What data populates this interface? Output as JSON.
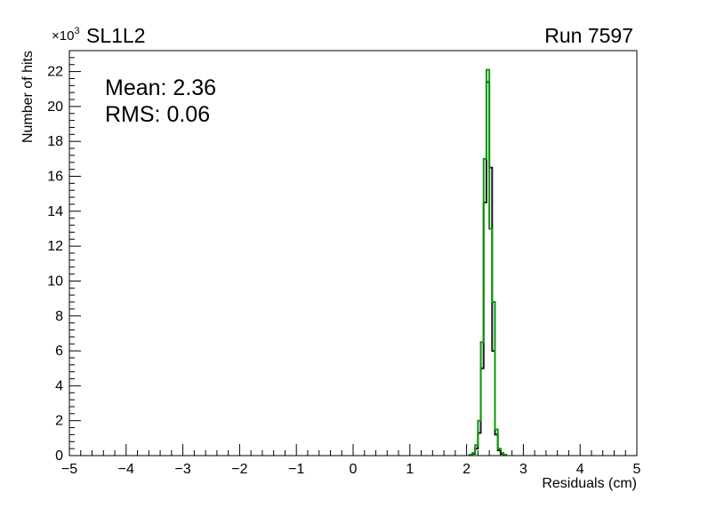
{
  "page": {
    "background": "#ffffff"
  },
  "chart_data": {
    "type": "histogram-step",
    "title": "SL1L2",
    "corner_label": "Run 7597",
    "xlabel": "Residuals (cm)",
    "ylabel": "Number of hits",
    "y_multiplier_base": "×10",
    "y_multiplier_exp": "3",
    "annotation": {
      "line1": "Mean: 2.36",
      "line2": "RMS:  0.06",
      "mean": 2.36,
      "rms": 0.06
    },
    "xlim": [
      -5,
      5
    ],
    "ylim": [
      0,
      23.2
    ],
    "x_major_ticks": [
      -5,
      -4,
      -3,
      -2,
      -1,
      0,
      1,
      2,
      3,
      4,
      5
    ],
    "x_tick_labels": [
      "−5",
      "−4",
      "−3",
      "−2",
      "−1",
      "0",
      "1",
      "2",
      "3",
      "4",
      "5"
    ],
    "y_major_ticks": [
      0,
      2,
      4,
      6,
      8,
      10,
      12,
      14,
      16,
      18,
      20,
      22
    ],
    "y_tick_labels": [
      "0",
      "2",
      "4",
      "6",
      "8",
      "10",
      "12",
      "14",
      "16",
      "18",
      "20",
      "22"
    ],
    "x_minor_step": 0.2,
    "y_minor_step": 0.4,
    "axis_color": "#000000",
    "units_note": "y values in thousands of hits",
    "series": [
      {
        "name": "black-histogram",
        "color": "#1b1b1b",
        "line_width": 2,
        "bin_start": 2.1,
        "bin_width": 0.05,
        "values_k": [
          0.1,
          0.4,
          1.3,
          5.0,
          14.5,
          21.4,
          16.5,
          6.0,
          1.2,
          0.3,
          0.1
        ]
      },
      {
        "name": "green-histogram",
        "color": "#0a9a0a",
        "line_width": 2,
        "bin_start": 2.05,
        "bin_width": 0.05,
        "values_k": [
          0.05,
          0.15,
          0.6,
          2.0,
          6.5,
          17.0,
          22.1,
          13.0,
          8.8,
          1.5,
          0.4,
          0.15,
          0.05
        ]
      }
    ]
  }
}
